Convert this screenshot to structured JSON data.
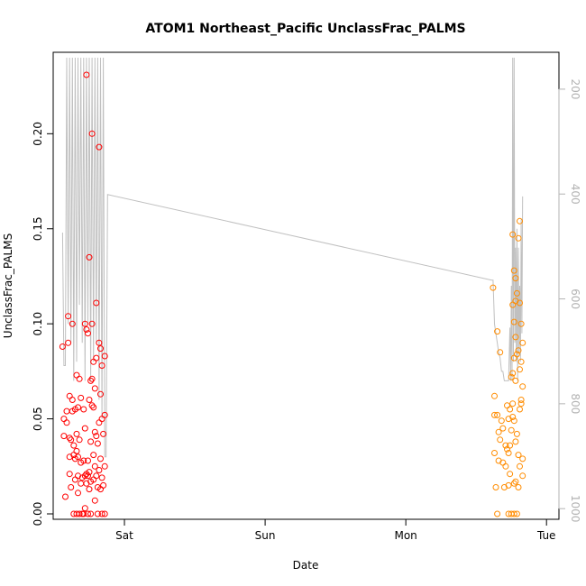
{
  "chart_data": {
    "type": "scatter",
    "title": "ATOM1 Northeast_Pacific UnclassFrac_PALMS",
    "xlabel": "Date",
    "ylabel": "UnclassFrac_PALMS",
    "x_ticks": [
      {
        "label": "Sat",
        "value": 1.0
      },
      {
        "label": "Sun",
        "value": 2.0
      },
      {
        "label": "Mon",
        "value": 3.0
      },
      {
        "label": "Tue",
        "value": 4.0
      }
    ],
    "xlim": [
      0.5,
      4.05
    ],
    "ylim": [
      0.0,
      0.24
    ],
    "y_ticks": [
      0.0,
      0.05,
      0.1,
      0.15,
      0.2
    ],
    "y_tick_labels": [
      "0.00",
      "0.05",
      "0.10",
      "0.15",
      "0.20"
    ],
    "right_axis": {
      "ticks": [
        200,
        400,
        600,
        800,
        1000
      ],
      "tick_labels": [
        "200",
        "400",
        "600",
        "800",
        "1000"
      ],
      "range_top": 140,
      "range_bottom": 1010,
      "color": "#b3b3b3"
    },
    "grid": false,
    "colors": {
      "series1": "#ff0000",
      "series2": "#ff8c00",
      "altitude": "#c0c0c0"
    },
    "series": [
      {
        "color": "#ff0000",
        "points": [
          [
            0.56,
            0.088
          ],
          [
            0.57,
            0.05
          ],
          [
            0.57,
            0.041
          ],
          [
            0.58,
            0.009
          ],
          [
            0.59,
            0.048
          ],
          [
            0.59,
            0.054
          ],
          [
            0.6,
            0.104
          ],
          [
            0.6,
            0.09
          ],
          [
            0.61,
            0.062
          ],
          [
            0.61,
            0.04
          ],
          [
            0.61,
            0.03
          ],
          [
            0.61,
            0.021
          ],
          [
            0.62,
            0.039
          ],
          [
            0.62,
            0.014
          ],
          [
            0.63,
            0.1
          ],
          [
            0.63,
            0.06
          ],
          [
            0.63,
            0.054
          ],
          [
            0.64,
            0.036
          ],
          [
            0.64,
            0.031
          ],
          [
            0.64,
            0.0
          ],
          [
            0.65,
            0.055
          ],
          [
            0.65,
            0.029
          ],
          [
            0.65,
            0.018
          ],
          [
            0.66,
            0.073
          ],
          [
            0.66,
            0.042
          ],
          [
            0.66,
            0.033
          ],
          [
            0.66,
            0.0
          ],
          [
            0.67,
            0.056
          ],
          [
            0.67,
            0.03
          ],
          [
            0.67,
            0.02
          ],
          [
            0.67,
            0.011
          ],
          [
            0.68,
            0.071
          ],
          [
            0.68,
            0.039
          ],
          [
            0.68,
            0.0
          ],
          [
            0.69,
            0.061
          ],
          [
            0.69,
            0.027
          ],
          [
            0.69,
            0.016
          ],
          [
            0.7,
            0.019
          ],
          [
            0.7,
            0.0
          ],
          [
            0.71,
            0.055
          ],
          [
            0.71,
            0.028
          ],
          [
            0.71,
            0.0
          ],
          [
            0.72,
            0.1
          ],
          [
            0.72,
            0.045
          ],
          [
            0.72,
            0.02
          ],
          [
            0.72,
            0.003
          ],
          [
            0.73,
            0.231
          ],
          [
            0.73,
            0.097
          ],
          [
            0.73,
            0.021
          ],
          [
            0.73,
            0.016
          ],
          [
            0.74,
            0.095
          ],
          [
            0.74,
            0.028
          ],
          [
            0.74,
            0.02
          ],
          [
            0.74,
            0.0
          ],
          [
            0.75,
            0.135
          ],
          [
            0.75,
            0.06
          ],
          [
            0.75,
            0.022
          ],
          [
            0.75,
            0.013
          ],
          [
            0.76,
            0.07
          ],
          [
            0.76,
            0.038
          ],
          [
            0.76,
            0.017
          ],
          [
            0.76,
            0.0
          ],
          [
            0.77,
            0.2
          ],
          [
            0.77,
            0.1
          ],
          [
            0.77,
            0.071
          ],
          [
            0.77,
            0.057
          ],
          [
            0.78,
            0.08
          ],
          [
            0.78,
            0.056
          ],
          [
            0.78,
            0.031
          ],
          [
            0.78,
            0.018
          ],
          [
            0.79,
            0.066
          ],
          [
            0.79,
            0.043
          ],
          [
            0.79,
            0.025
          ],
          [
            0.79,
            0.007
          ],
          [
            0.8,
            0.111
          ],
          [
            0.8,
            0.082
          ],
          [
            0.8,
            0.041
          ],
          [
            0.8,
            0.02
          ],
          [
            0.81,
            0.037
          ],
          [
            0.81,
            0.014
          ],
          [
            0.81,
            0.0
          ],
          [
            0.82,
            0.193
          ],
          [
            0.82,
            0.09
          ],
          [
            0.82,
            0.048
          ],
          [
            0.82,
            0.023
          ],
          [
            0.83,
            0.087
          ],
          [
            0.83,
            0.063
          ],
          [
            0.83,
            0.029
          ],
          [
            0.83,
            0.013
          ],
          [
            0.84,
            0.078
          ],
          [
            0.84,
            0.05
          ],
          [
            0.84,
            0.019
          ],
          [
            0.84,
            0.0
          ],
          [
            0.85,
            0.042
          ],
          [
            0.85,
            0.015
          ],
          [
            0.86,
            0.083
          ],
          [
            0.86,
            0.052
          ],
          [
            0.86,
            0.025
          ],
          [
            0.86,
            0.0
          ]
        ]
      },
      {
        "color": "#ff8c00",
        "points": [
          [
            3.62,
            0.119
          ],
          [
            3.63,
            0.062
          ],
          [
            3.63,
            0.052
          ],
          [
            3.63,
            0.032
          ],
          [
            3.64,
            0.014
          ],
          [
            3.65,
            0.096
          ],
          [
            3.65,
            0.052
          ],
          [
            3.65,
            0.0
          ],
          [
            3.66,
            0.043
          ],
          [
            3.66,
            0.028
          ],
          [
            3.67,
            0.085
          ],
          [
            3.67,
            0.039
          ],
          [
            3.68,
            0.049
          ],
          [
            3.69,
            0.045
          ],
          [
            3.69,
            0.027
          ],
          [
            3.7,
            0.014
          ],
          [
            3.71,
            0.036
          ],
          [
            3.71,
            0.025
          ],
          [
            3.72,
            0.057
          ],
          [
            3.72,
            0.034
          ],
          [
            3.73,
            0.05
          ],
          [
            3.73,
            0.032
          ],
          [
            3.73,
            0.015
          ],
          [
            3.73,
            0.0
          ],
          [
            3.74,
            0.055
          ],
          [
            3.74,
            0.036
          ],
          [
            3.74,
            0.021
          ],
          [
            3.75,
            0.072
          ],
          [
            3.75,
            0.044
          ],
          [
            3.75,
            0.0
          ],
          [
            3.76,
            0.147
          ],
          [
            3.76,
            0.11
          ],
          [
            3.76,
            0.074
          ],
          [
            3.76,
            0.058
          ],
          [
            3.76,
            0.051
          ],
          [
            3.77,
            0.128
          ],
          [
            3.77,
            0.101
          ],
          [
            3.77,
            0.082
          ],
          [
            3.77,
            0.049
          ],
          [
            3.77,
            0.016
          ],
          [
            3.77,
            0.0
          ],
          [
            3.78,
            0.124
          ],
          [
            3.78,
            0.112
          ],
          [
            3.78,
            0.093
          ],
          [
            3.78,
            0.07
          ],
          [
            3.78,
            0.038
          ],
          [
            3.78,
            0.017
          ],
          [
            3.79,
            0.116
          ],
          [
            3.79,
            0.084
          ],
          [
            3.79,
            0.042
          ],
          [
            3.79,
            0.0
          ],
          [
            3.8,
            0.145
          ],
          [
            3.8,
            0.086
          ],
          [
            3.8,
            0.031
          ],
          [
            3.8,
            0.014
          ],
          [
            3.81,
            0.154
          ],
          [
            3.81,
            0.111
          ],
          [
            3.81,
            0.076
          ],
          [
            3.81,
            0.055
          ],
          [
            3.81,
            0.025
          ],
          [
            3.82,
            0.1
          ],
          [
            3.82,
            0.08
          ],
          [
            3.82,
            0.06
          ],
          [
            3.82,
            0.058
          ],
          [
            3.83,
            0.09
          ],
          [
            3.83,
            0.067
          ],
          [
            3.83,
            0.029
          ],
          [
            3.83,
            0.02
          ]
        ]
      }
    ],
    "altitude_line": [
      [
        0.56,
        0.148
      ],
      [
        0.57,
        0.078
      ],
      [
        0.58,
        0.078
      ],
      [
        0.59,
        0.24
      ],
      [
        0.6,
        0.1
      ],
      [
        0.61,
        0.24
      ],
      [
        0.62,
        0.09
      ],
      [
        0.63,
        0.24
      ],
      [
        0.64,
        0.07
      ],
      [
        0.65,
        0.24
      ],
      [
        0.66,
        0.08
      ],
      [
        0.67,
        0.24
      ],
      [
        0.68,
        0.11
      ],
      [
        0.69,
        0.24
      ],
      [
        0.7,
        0.09
      ],
      [
        0.71,
        0.24
      ],
      [
        0.72,
        0.07
      ],
      [
        0.73,
        0.24
      ],
      [
        0.74,
        0.1
      ],
      [
        0.75,
        0.24
      ],
      [
        0.76,
        0.07
      ],
      [
        0.77,
        0.24
      ],
      [
        0.78,
        0.08
      ],
      [
        0.79,
        0.24
      ],
      [
        0.8,
        0.09
      ],
      [
        0.81,
        0.24
      ],
      [
        0.82,
        0.06
      ],
      [
        0.83,
        0.24
      ],
      [
        0.84,
        0.05
      ],
      [
        0.85,
        0.24
      ],
      [
        0.86,
        0.03
      ],
      [
        0.87,
        0.03
      ],
      [
        0.88,
        0.168
      ],
      [
        3.61,
        0.123
      ],
      [
        3.62,
        0.123
      ],
      [
        3.63,
        0.1
      ],
      [
        3.64,
        0.095
      ],
      [
        3.65,
        0.09
      ],
      [
        3.66,
        0.085
      ],
      [
        3.67,
        0.082
      ],
      [
        3.68,
        0.075
      ],
      [
        3.69,
        0.075
      ],
      [
        3.7,
        0.07
      ],
      [
        3.71,
        0.07
      ],
      [
        3.72,
        0.07
      ],
      [
        3.73,
        0.07
      ],
      [
        3.74,
        0.098
      ],
      [
        3.745,
        0.07
      ],
      [
        3.75,
        0.12
      ],
      [
        3.755,
        0.07
      ],
      [
        3.76,
        0.24
      ],
      [
        3.765,
        0.08
      ],
      [
        3.77,
        0.24
      ],
      [
        3.775,
        0.09
      ],
      [
        3.78,
        0.14
      ],
      [
        3.785,
        0.08
      ],
      [
        3.79,
        0.15
      ],
      [
        3.795,
        0.07
      ],
      [
        3.8,
        0.14
      ],
      [
        3.805,
        0.085
      ],
      [
        3.81,
        0.12
      ],
      [
        3.815,
        0.08
      ],
      [
        3.82,
        0.155
      ],
      [
        3.825,
        0.095
      ],
      [
        3.83,
        0.167
      ]
    ]
  }
}
